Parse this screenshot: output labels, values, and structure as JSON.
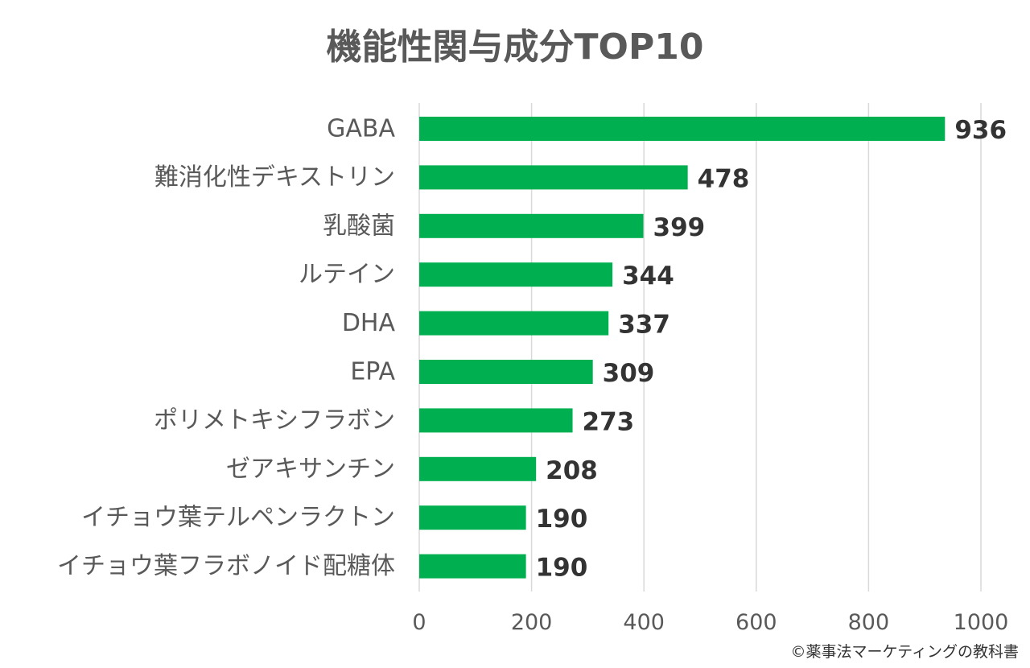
{
  "chart_data": {
    "type": "bar",
    "orientation": "horizontal",
    "title": "機能性関与成分TOP10",
    "categories": [
      "GABA",
      "難消化性デキストリン",
      "乳酸菌",
      "ルテイン",
      "DHA",
      "EPA",
      "ポリメトキシフラボン",
      "ゼアキサンチン",
      "イチョウ葉テルペンラクトン",
      "イチョウ葉フラボノイド配糖体"
    ],
    "values": [
      936,
      478,
      399,
      344,
      337,
      309,
      273,
      208,
      190,
      190
    ],
    "data_labels": [
      "936",
      "478",
      "399",
      "344",
      "337",
      "309",
      "273",
      "208",
      "190",
      "190"
    ],
    "xlim": [
      0,
      1000
    ],
    "x_ticks": [
      0,
      200,
      400,
      600,
      800,
      1000
    ],
    "x_tick_labels": [
      "0",
      "200",
      "400",
      "600",
      "800",
      "1000"
    ],
    "grid": "vertical",
    "legend": "none",
    "bar_color": "#00b050"
  },
  "footer": {
    "copyright": "©薬事法マーケティングの教科書"
  }
}
